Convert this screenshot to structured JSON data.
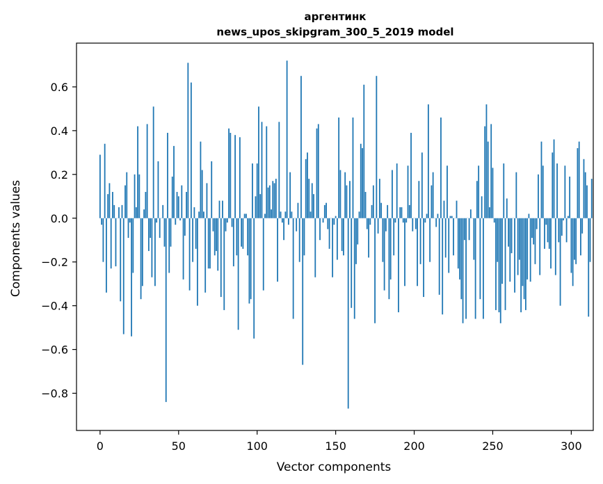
{
  "chart_data": {
    "type": "bar",
    "title_line1": "аргентинк",
    "title_line2": "news_upos_skipgram_300_5_2019 model",
    "xlabel": "Vector components",
    "ylabel": "Components values",
    "xlim": [
      -15,
      314
    ],
    "ylim": [
      -0.97,
      0.8
    ],
    "xticks": [
      0,
      50,
      100,
      150,
      200,
      250,
      300
    ],
    "xtick_labels": [
      "0",
      "50",
      "100",
      "150",
      "200",
      "250",
      "300"
    ],
    "yticks": [
      -0.8,
      -0.6,
      -0.4,
      -0.2,
      0.0,
      0.2,
      0.4,
      0.6
    ],
    "ytick_labels": [
      "−0.8",
      "−0.6",
      "−0.4",
      "−0.2",
      "0.0",
      "0.2",
      "0.4",
      "0.6"
    ],
    "bar_color": "#1f77b4",
    "grid": false,
    "values": [
      0.29,
      -0.03,
      -0.2,
      0.34,
      -0.34,
      0.11,
      0.16,
      -0.23,
      0.12,
      0.06,
      -0.22,
      0.0,
      0.05,
      -0.38,
      0.06,
      -0.53,
      0.15,
      0.21,
      -0.09,
      -0.02,
      -0.54,
      -0.25,
      0.2,
      0.05,
      0.42,
      0.2,
      -0.37,
      -0.31,
      0.04,
      0.12,
      0.43,
      -0.15,
      -0.09,
      -0.27,
      0.51,
      -0.31,
      -0.02,
      0.26,
      -0.09,
      0.0,
      0.06,
      -0.13,
      -0.84,
      0.39,
      -0.25,
      -0.13,
      0.19,
      0.33,
      -0.03,
      0.12,
      0.1,
      -0.01,
      0.15,
      -0.28,
      -0.08,
      0.12,
      0.71,
      -0.33,
      0.62,
      -0.2,
      0.05,
      -0.14,
      -0.4,
      0.03,
      0.35,
      0.22,
      0.03,
      -0.34,
      0.16,
      -0.23,
      -0.23,
      0.26,
      -0.06,
      -0.17,
      -0.15,
      -0.24,
      0.08,
      -0.36,
      0.08,
      -0.42,
      -0.06,
      -0.02,
      0.41,
      0.39,
      -0.04,
      -0.22,
      0.38,
      -0.17,
      -0.51,
      0.37,
      -0.13,
      -0.14,
      0.02,
      0.02,
      -0.17,
      -0.39,
      -0.37,
      0.25,
      -0.55,
      0.1,
      0.25,
      0.51,
      0.11,
      0.44,
      -0.33,
      0.02,
      0.42,
      0.14,
      0.15,
      0.04,
      0.17,
      0.16,
      0.18,
      -0.29,
      0.44,
      0.03,
      -0.02,
      -0.1,
      0.03,
      0.72,
      -0.03,
      0.21,
      0.03,
      -0.46,
      0.0,
      -0.06,
      0.07,
      -0.2,
      0.65,
      -0.67,
      -0.17,
      0.27,
      0.3,
      0.18,
      0.03,
      0.16,
      0.11,
      -0.27,
      0.41,
      0.43,
      -0.1,
      0.0,
      -0.02,
      0.06,
      0.07,
      -0.05,
      -0.14,
      0.0,
      -0.27,
      -0.03,
      0.01,
      -0.19,
      0.46,
      0.22,
      -0.15,
      -0.17,
      0.21,
      0.15,
      -0.87,
      0.17,
      -0.41,
      0.46,
      -0.46,
      -0.21,
      -0.12,
      0.03,
      0.34,
      0.32,
      0.61,
      0.12,
      -0.05,
      -0.18,
      -0.03,
      0.06,
      0.15,
      -0.48,
      0.65,
      -0.07,
      0.18,
      0.07,
      -0.2,
      -0.33,
      -0.06,
      0.06,
      -0.37,
      -0.28,
      0.22,
      -0.17,
      -0.02,
      0.25,
      -0.43,
      0.05,
      0.05,
      -0.02,
      -0.31,
      -0.02,
      0.24,
      0.06,
      0.39,
      -0.06,
      0.0,
      -0.05,
      -0.31,
      0.17,
      -0.21,
      0.3,
      -0.36,
      -0.02,
      0.02,
      0.52,
      -0.2,
      0.15,
      0.21,
      0.0,
      -0.04,
      0.02,
      -0.35,
      0.46,
      -0.44,
      0.08,
      -0.18,
      0.24,
      -0.25,
      0.01,
      0.01,
      -0.17,
      0.0,
      0.08,
      -0.23,
      -0.28,
      -0.37,
      -0.48,
      -0.1,
      -0.46,
      0.0,
      -0.1,
      0.04,
      0.0,
      -0.19,
      -0.46,
      0.17,
      0.24,
      -0.37,
      0.1,
      -0.46,
      0.42,
      0.52,
      0.35,
      0.05,
      0.43,
      0.23,
      -0.02,
      -0.42,
      -0.2,
      -0.43,
      -0.48,
      -0.3,
      0.25,
      -0.42,
      0.09,
      -0.13,
      -0.29,
      -0.16,
      0.0,
      -0.34,
      0.21,
      -0.26,
      -0.19,
      -0.43,
      -0.31,
      -0.37,
      -0.42,
      -0.28,
      0.02,
      -0.29,
      -0.09,
      -0.12,
      -0.21,
      -0.05,
      0.2,
      -0.26,
      0.35,
      0.24,
      -0.14,
      -0.03,
      -0.11,
      -0.14,
      -0.23,
      0.3,
      0.36,
      -0.26,
      0.25,
      -0.11,
      -0.4,
      -0.08,
      -0.01,
      0.24,
      -0.11,
      0.01,
      0.19,
      -0.25,
      -0.31,
      -0.19,
      -0.21,
      0.32,
      0.35,
      -0.17,
      -0.07,
      0.27,
      0.21,
      0.15,
      -0.45,
      -0.2,
      0.18
    ]
  }
}
